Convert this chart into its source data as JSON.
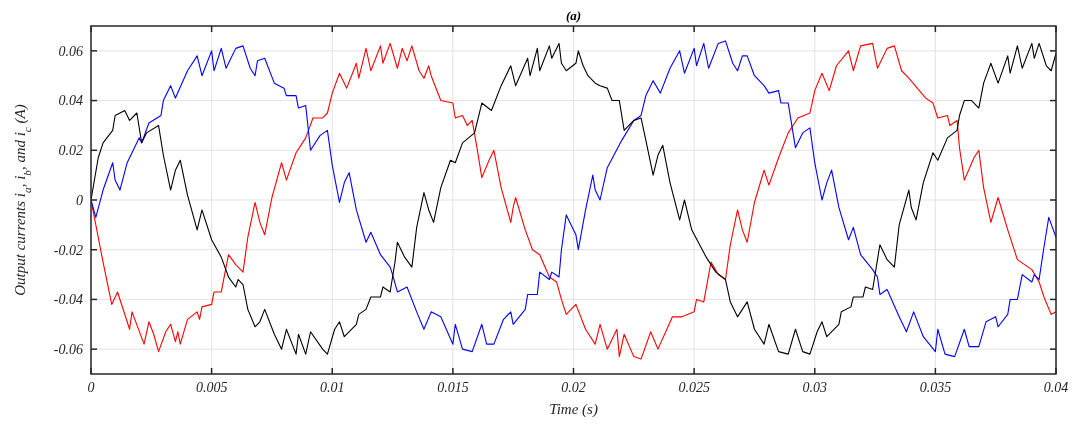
{
  "chart_data": {
    "type": "line",
    "title": "(a)",
    "xlabel": "Time (s)",
    "ylabel": "Output currents i$_{a}$, i$_{b}$, and i$_{c}$ (A)",
    "xlim": [
      0,
      0.04
    ],
    "xticks": [
      0,
      0.005,
      0.01,
      0.015,
      0.02,
      0.025,
      0.03,
      0.035,
      0.04
    ],
    "ylim": [
      -0.07,
      0.07
    ],
    "yticks": [
      -0.06,
      -0.04,
      -0.02,
      0,
      0.02,
      0.04,
      0.06
    ],
    "grid": true,
    "line_style": "solid",
    "marker": "none",
    "series": [
      {
        "color": "#ff0000",
        "x": [
          0,
          0.0005,
          0.00086,
          0.0011,
          0.0016,
          0.0017,
          0.0022,
          0.0024,
          0.0026,
          0.0028,
          0.0031,
          0.0033,
          0.0035,
          0.0036,
          0.0037,
          0.004,
          0.0044,
          0.0045,
          0.0046,
          0.005,
          0.0051,
          0.0054,
          0.0057,
          0.006,
          0.0063,
          0.0065,
          0.0068,
          0.007,
          0.0072,
          0.0075,
          0.0079,
          0.0081,
          0.0085,
          0.0089,
          0.0092,
          0.0096,
          0.0098,
          0.01,
          0.0103,
          0.0106,
          0.011,
          0.0111,
          0.0114,
          0.0116,
          0.012,
          0.0121,
          0.0124,
          0.0127,
          0.0129,
          0.0131,
          0.0133,
          0.0136,
          0.0138,
          0.014,
          0.0141,
          0.0145,
          0.015,
          0.0151,
          0.0154,
          0.0156,
          0.0158,
          0.016,
          0.0162,
          0.0165,
          0.0167,
          0.017,
          0.0174,
          0.0175,
          0.0176,
          0.018,
          0.0183,
          0.0186,
          0.019,
          0.0193,
          0.0195,
          0.0197,
          0.0201,
          0.0205,
          0.0209,
          0.0211,
          0.0214,
          0.0218,
          0.0219,
          0.0221,
          0.0225,
          0.0228,
          0.0232,
          0.0235,
          0.0241,
          0.0245,
          0.025,
          0.0251,
          0.0254,
          0.0257,
          0.026,
          0.0263,
          0.0265,
          0.0268,
          0.027,
          0.0272,
          0.0275,
          0.0279,
          0.0281,
          0.0285,
          0.0289,
          0.0293,
          0.0298,
          0.03,
          0.0303,
          0.0306,
          0.0309,
          0.0314,
          0.0316,
          0.0319,
          0.0324,
          0.0326,
          0.033,
          0.0333,
          0.0336,
          0.0339,
          0.0346,
          0.0349,
          0.0351,
          0.0355,
          0.0356,
          0.0359,
          0.036,
          0.0362,
          0.0366,
          0.0368,
          0.037,
          0.0373,
          0.0376,
          0.038,
          0.0384,
          0.039,
          0.0393,
          0.0395,
          0.0398,
          0.04
        ],
        "values": [
          0,
          -0.025,
          -0.042,
          -0.037,
          -0.052,
          -0.045,
          -0.058,
          -0.049,
          -0.054,
          -0.061,
          -0.053,
          -0.05,
          -0.057,
          -0.053,
          -0.058,
          -0.048,
          -0.045,
          -0.048,
          -0.043,
          -0.042,
          -0.037,
          -0.037,
          -0.022,
          -0.026,
          -0.029,
          -0.015,
          -0.001,
          -0.009,
          -0.014,
          0.001,
          0.015,
          0.008,
          0.019,
          0.025,
          0.033,
          0.033,
          0.035,
          0.043,
          0.051,
          0.045,
          0.055,
          0.049,
          0.061,
          0.052,
          0.062,
          0.055,
          0.063,
          0.053,
          0.061,
          0.056,
          0.062,
          0.052,
          0.049,
          0.054,
          0.05,
          0.04,
          0.039,
          0.033,
          0.034,
          0.03,
          0.032,
          0.021,
          0.009,
          0.016,
          0.02,
          0.005,
          -0.009,
          -0.003,
          0.001,
          -0.012,
          -0.02,
          -0.022,
          -0.031,
          -0.033,
          -0.04,
          -0.046,
          -0.042,
          -0.052,
          -0.058,
          -0.05,
          -0.06,
          -0.052,
          -0.063,
          -0.054,
          -0.063,
          -0.064,
          -0.053,
          -0.06,
          -0.047,
          -0.047,
          -0.045,
          -0.04,
          -0.041,
          -0.025,
          -0.03,
          -0.032,
          -0.018,
          -0.004,
          -0.012,
          -0.017,
          -0.001,
          0.012,
          0.006,
          0.017,
          0.027,
          0.033,
          0.035,
          0.044,
          0.051,
          0.044,
          0.054,
          0.06,
          0.052,
          0.062,
          0.063,
          0.053,
          0.061,
          0.062,
          0.052,
          0.049,
          0.041,
          0.039,
          0.033,
          0.034,
          0.03,
          0.032,
          0.021,
          0.008,
          0.017,
          0.02,
          0.005,
          -0.009,
          0.001,
          -0.012,
          -0.024,
          -0.028,
          -0.033,
          -0.039,
          -0.046,
          -0.045
        ]
      },
      {
        "color": "#0000ff",
        "x": [
          0,
          0.0002,
          0.0005,
          0.0009,
          0.001,
          0.0012,
          0.0015,
          0.002,
          0.0021,
          0.0024,
          0.0029,
          0.003,
          0.0033,
          0.0035,
          0.004,
          0.0044,
          0.0046,
          0.005,
          0.0051,
          0.0054,
          0.0056,
          0.006,
          0.0063,
          0.0066,
          0.0068,
          0.0069,
          0.0072,
          0.0076,
          0.008,
          0.0081,
          0.0085,
          0.0086,
          0.0089,
          0.0091,
          0.0095,
          0.0098,
          0.01,
          0.0103,
          0.0105,
          0.0107,
          0.011,
          0.0114,
          0.0116,
          0.012,
          0.0124,
          0.0125,
          0.0127,
          0.0131,
          0.0135,
          0.0138,
          0.0141,
          0.0145,
          0.015,
          0.0151,
          0.0154,
          0.0158,
          0.0162,
          0.0164,
          0.0167,
          0.0171,
          0.0174,
          0.0175,
          0.018,
          0.0181,
          0.0185,
          0.0186,
          0.019,
          0.0191,
          0.0194,
          0.0195,
          0.0197,
          0.0201,
          0.0202,
          0.0205,
          0.0208,
          0.0209,
          0.0211,
          0.0214,
          0.022,
          0.0225,
          0.0228,
          0.023,
          0.0233,
          0.0236,
          0.024,
          0.0244,
          0.0246,
          0.025,
          0.0251,
          0.0254,
          0.0256,
          0.026,
          0.0263,
          0.0266,
          0.0268,
          0.027,
          0.0272,
          0.0275,
          0.0279,
          0.0281,
          0.0285,
          0.0286,
          0.0289,
          0.0292,
          0.0295,
          0.0298,
          0.03,
          0.0303,
          0.0305,
          0.0307,
          0.031,
          0.0314,
          0.0316,
          0.0319,
          0.0324,
          0.0326,
          0.0327,
          0.033,
          0.0335,
          0.0338,
          0.0341,
          0.0345,
          0.035,
          0.0351,
          0.0354,
          0.0358,
          0.0362,
          0.0364,
          0.0368,
          0.0371,
          0.0375,
          0.0376,
          0.038,
          0.0381,
          0.0384,
          0.0386,
          0.039,
          0.0391,
          0.0393,
          0.0395,
          0.0397,
          0.04
        ],
        "values": [
          0,
          -0.007,
          0.004,
          0.015,
          0.008,
          0.004,
          0.015,
          0.025,
          0.023,
          0.031,
          0.034,
          0.04,
          0.046,
          0.041,
          0.052,
          0.058,
          0.05,
          0.06,
          0.052,
          0.061,
          0.053,
          0.061,
          0.062,
          0.053,
          0.05,
          0.056,
          0.057,
          0.047,
          0.045,
          0.042,
          0.042,
          0.037,
          0.038,
          0.02,
          0.026,
          0.028,
          0.014,
          -0.001,
          0.007,
          0.011,
          -0.004,
          -0.017,
          -0.013,
          -0.022,
          -0.027,
          -0.03,
          -0.037,
          -0.035,
          -0.045,
          -0.052,
          -0.045,
          -0.047,
          -0.058,
          -0.05,
          -0.06,
          -0.061,
          -0.05,
          -0.058,
          -0.058,
          -0.048,
          -0.045,
          -0.05,
          -0.044,
          -0.038,
          -0.038,
          -0.029,
          -0.032,
          -0.029,
          -0.031,
          -0.02,
          -0.006,
          -0.014,
          -0.02,
          -0.004,
          0.01,
          0.004,
          0,
          0.013,
          0.024,
          0.032,
          0.034,
          0.042,
          0.048,
          0.043,
          0.053,
          0.06,
          0.051,
          0.061,
          0.054,
          0.063,
          0.053,
          0.063,
          0.064,
          0.055,
          0.052,
          0.058,
          0.058,
          0.05,
          0.046,
          0.043,
          0.044,
          0.039,
          0.039,
          0.021,
          0.027,
          0.029,
          0.015,
          0,
          0.007,
          0.012,
          -0.003,
          -0.016,
          -0.011,
          -0.022,
          -0.028,
          -0.031,
          -0.038,
          -0.036,
          -0.047,
          -0.053,
          -0.045,
          -0.055,
          -0.061,
          -0.052,
          -0.062,
          -0.063,
          -0.052,
          -0.059,
          -0.059,
          -0.049,
          -0.047,
          -0.051,
          -0.046,
          -0.04,
          -0.04,
          -0.03,
          -0.033,
          -0.03,
          -0.032,
          -0.019,
          -0.007,
          -0.015
        ]
      },
      {
        "color": "#000000",
        "x": [
          0,
          0.0003,
          0.0005,
          0.0009,
          0.001,
          0.0012,
          0.0014,
          0.0016,
          0.0019,
          0.0021,
          0.0023,
          0.0028,
          0.003,
          0.0033,
          0.0035,
          0.0037,
          0.004,
          0.0044,
          0.0045,
          0.0046,
          0.005,
          0.0054,
          0.0057,
          0.006,
          0.0061,
          0.0063,
          0.0065,
          0.0068,
          0.007,
          0.0072,
          0.0076,
          0.0079,
          0.0081,
          0.0085,
          0.0086,
          0.0089,
          0.0091,
          0.0096,
          0.0098,
          0.0101,
          0.0103,
          0.0105,
          0.011,
          0.0111,
          0.0114,
          0.0116,
          0.012,
          0.0121,
          0.0124,
          0.0126,
          0.0127,
          0.013,
          0.0133,
          0.0135,
          0.0138,
          0.014,
          0.0142,
          0.0145,
          0.0149,
          0.0151,
          0.0154,
          0.0159,
          0.016,
          0.0162,
          0.0166,
          0.017,
          0.0174,
          0.0176,
          0.0181,
          0.0182,
          0.0185,
          0.0186,
          0.019,
          0.0191,
          0.0194,
          0.0195,
          0.0197,
          0.0201,
          0.0202,
          0.0204,
          0.0206,
          0.0209,
          0.0211,
          0.0214,
          0.0216,
          0.0219,
          0.0221,
          0.0225,
          0.0228,
          0.023,
          0.0233,
          0.0235,
          0.0237,
          0.024,
          0.0244,
          0.0246,
          0.0249,
          0.0255,
          0.0259,
          0.0263,
          0.0265,
          0.0268,
          0.0272,
          0.0275,
          0.0279,
          0.0281,
          0.0285,
          0.0289,
          0.0292,
          0.0295,
          0.0298,
          0.0301,
          0.0303,
          0.0305,
          0.031,
          0.0311,
          0.0315,
          0.0316,
          0.032,
          0.0321,
          0.0324,
          0.0327,
          0.033,
          0.0333,
          0.0335,
          0.0339,
          0.034,
          0.0342,
          0.0345,
          0.0349,
          0.0351,
          0.0355,
          0.0359,
          0.036,
          0.0362,
          0.0365,
          0.0368,
          0.037,
          0.0373,
          0.0376,
          0.038,
          0.0381,
          0.0384,
          0.0386,
          0.039,
          0.0391,
          0.0393,
          0.0396,
          0.0398,
          0.04
        ],
        "values": [
          0,
          0.017,
          0.023,
          0.028,
          0.034,
          0.035,
          0.036,
          0.032,
          0.035,
          0.023,
          0.027,
          0.03,
          0.018,
          0.004,
          0.012,
          0.016,
          0.002,
          -0.012,
          -0.008,
          -0.004,
          -0.016,
          -0.023,
          -0.031,
          -0.035,
          -0.032,
          -0.034,
          -0.044,
          -0.051,
          -0.049,
          -0.044,
          -0.054,
          -0.06,
          -0.052,
          -0.062,
          -0.054,
          -0.062,
          -0.053,
          -0.06,
          -0.062,
          -0.052,
          -0.049,
          -0.055,
          -0.05,
          -0.046,
          -0.044,
          -0.039,
          -0.039,
          -0.035,
          -0.037,
          -0.025,
          -0.017,
          -0.023,
          -0.027,
          -0.011,
          0.003,
          -0.004,
          -0.009,
          0.005,
          0.016,
          0.015,
          0.023,
          0.027,
          0.031,
          0.039,
          0.036,
          0.046,
          0.054,
          0.046,
          0.057,
          0.05,
          0.061,
          0.052,
          0.062,
          0.057,
          0.063,
          0.055,
          0.052,
          0.055,
          0.06,
          0.054,
          0.05,
          0.047,
          0.046,
          0.045,
          0.04,
          0.04,
          0.028,
          0.032,
          0.033,
          0.024,
          0.01,
          0.018,
          0.022,
          0.007,
          -0.008,
          0,
          -0.012,
          -0.023,
          -0.029,
          -0.032,
          -0.041,
          -0.047,
          -0.041,
          -0.052,
          -0.058,
          -0.05,
          -0.061,
          -0.062,
          -0.052,
          -0.061,
          -0.062,
          -0.053,
          -0.049,
          -0.055,
          -0.05,
          -0.045,
          -0.043,
          -0.039,
          -0.039,
          -0.035,
          -0.036,
          -0.018,
          -0.024,
          -0.027,
          -0.01,
          0.004,
          -0.003,
          -0.008,
          0.007,
          0.019,
          0.016,
          0.025,
          0.028,
          0.034,
          0.04,
          0.04,
          0.037,
          0.047,
          0.055,
          0.047,
          0.058,
          0.051,
          0.062,
          0.053,
          0.063,
          0.057,
          0.063,
          0.054,
          0.052,
          0.059
        ]
      }
    ]
  }
}
